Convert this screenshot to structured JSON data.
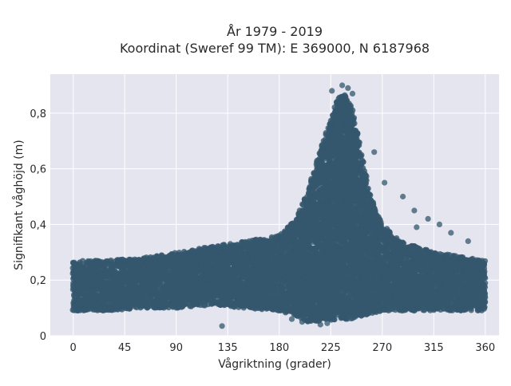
{
  "chart_data": {
    "type": "scatter",
    "title": [
      "År 1979 - 2019",
      "Koordinat (Sweref 99 TM): E 369000, N 6187968"
    ],
    "xlabel": "Vågriktning (grader)",
    "ylabel": "Signifikant våghöjd (m)",
    "xlim": [
      -20,
      372
    ],
    "ylim": [
      0,
      0.94
    ],
    "xticks": [
      0,
      45,
      90,
      135,
      180,
      225,
      270,
      315,
      360
    ],
    "xtick_labels": [
      "0",
      "45",
      "90",
      "135",
      "180",
      "225",
      "270",
      "315",
      "360"
    ],
    "yticks": [
      0,
      0.2,
      0.4,
      0.6,
      0.8
    ],
    "ytick_labels": [
      "0",
      "0,2",
      "0,4",
      "0,6",
      "0,8"
    ],
    "grid": true,
    "background_color": "#e5e5ef",
    "marker_color": "#34576e",
    "envelope": {
      "direction_deg": [
        0,
        10,
        30,
        60,
        90,
        120,
        150,
        180,
        195,
        205,
        215,
        225,
        232,
        238,
        245,
        252,
        260,
        270,
        285,
        300,
        315,
        330,
        345,
        360
      ],
      "upper_m": [
        0.27,
        0.27,
        0.27,
        0.28,
        0.3,
        0.32,
        0.34,
        0.36,
        0.42,
        0.52,
        0.66,
        0.78,
        0.86,
        0.87,
        0.8,
        0.65,
        0.5,
        0.4,
        0.34,
        0.32,
        0.3,
        0.29,
        0.28,
        0.27
      ],
      "lower_m": [
        0.09,
        0.09,
        0.09,
        0.1,
        0.1,
        0.11,
        0.1,
        0.09,
        0.07,
        0.05,
        0.05,
        0.05,
        0.06,
        0.06,
        0.06,
        0.07,
        0.08,
        0.09,
        0.09,
        0.09,
        0.09,
        0.09,
        0.09,
        0.09
      ]
    },
    "outliers": [
      {
        "x": 235,
        "y": 0.9
      },
      {
        "x": 240,
        "y": 0.89
      },
      {
        "x": 226,
        "y": 0.88
      },
      {
        "x": 244,
        "y": 0.87
      },
      {
        "x": 263,
        "y": 0.66
      },
      {
        "x": 272,
        "y": 0.55
      },
      {
        "x": 288,
        "y": 0.5
      },
      {
        "x": 298,
        "y": 0.45
      },
      {
        "x": 310,
        "y": 0.42
      },
      {
        "x": 320,
        "y": 0.4
      },
      {
        "x": 300,
        "y": 0.39
      },
      {
        "x": 330,
        "y": 0.37
      },
      {
        "x": 345,
        "y": 0.34
      },
      {
        "x": 130,
        "y": 0.035
      },
      {
        "x": 191,
        "y": 0.06
      },
      {
        "x": 200,
        "y": 0.05
      },
      {
        "x": 216,
        "y": 0.04
      },
      {
        "x": 222,
        "y": 0.045
      },
      {
        "x": 190,
        "y": 0.4
      },
      {
        "x": 200,
        "y": 0.45
      }
    ]
  }
}
